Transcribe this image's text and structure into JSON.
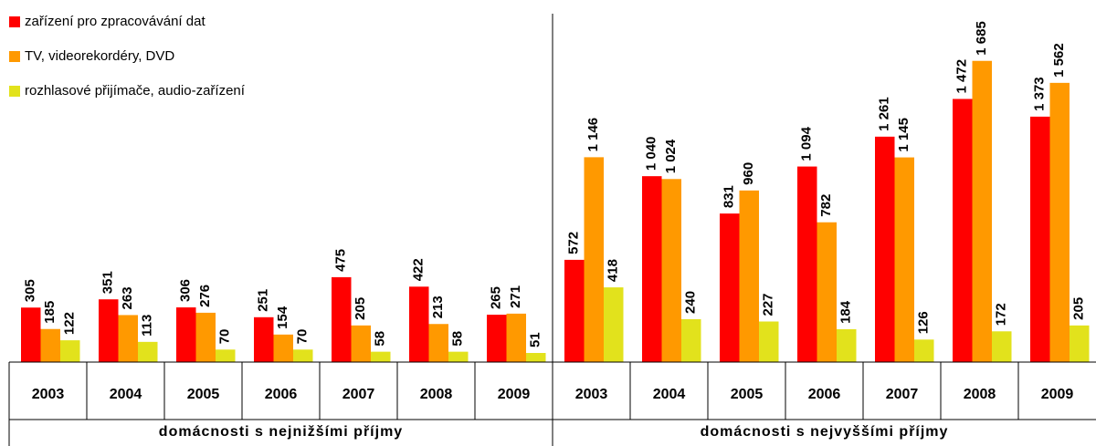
{
  "chart_data": {
    "type": "bar",
    "categories": [
      "2003",
      "2004",
      "2005",
      "2006",
      "2007",
      "2008",
      "2009",
      "2003",
      "2004",
      "2005",
      "2006",
      "2007",
      "2008",
      "2009"
    ],
    "groups": [
      "domácnosti s nejnižšími příjmy",
      "domácnosti s nejvyššími příjmy"
    ],
    "series": [
      {
        "name": "zařízení pro zpracovávání dat",
        "color": "#ff0000",
        "values": [
          305,
          351,
          306,
          251,
          475,
          422,
          265,
          572,
          1040,
          831,
          1094,
          1261,
          1472,
          1373
        ],
        "value_labels": [
          "305",
          "351",
          "306",
          "251",
          "475",
          "422",
          "265",
          "572",
          "1 040",
          "831",
          "1 094",
          "1 261",
          "1 472",
          "1 373"
        ]
      },
      {
        "name": "TV, videorekordéry, DVD",
        "color": "#ff9900",
        "values": [
          185,
          263,
          276,
          154,
          205,
          213,
          271,
          1146,
          1024,
          960,
          782,
          1145,
          1685,
          1562
        ],
        "value_labels": [
          "185",
          "263",
          "276",
          "154",
          "205",
          "213",
          "271",
          "1 146",
          "1 024",
          "960",
          "782",
          "1 145",
          "1 685",
          "1 562"
        ]
      },
      {
        "name": "rozhlasové přijímače, audio-zařízení",
        "color": "#e2e21c",
        "values": [
          122,
          113,
          70,
          70,
          58,
          58,
          51,
          418,
          240,
          227,
          184,
          126,
          172,
          205
        ],
        "value_labels": [
          "122",
          "113",
          "70",
          "70",
          "58",
          "58",
          "51",
          "418",
          "240",
          "227",
          "184",
          "126",
          "172",
          "205"
        ]
      }
    ]
  }
}
